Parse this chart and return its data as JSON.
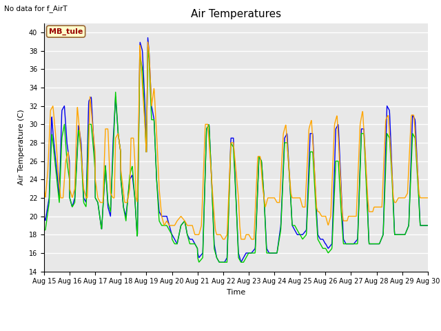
{
  "title": "Air Temperatures",
  "xlabel": "Time",
  "ylabel": "Air Temperature (C)",
  "no_data_text": "No data for f_AirT",
  "station_label": "MB_tule",
  "ylim": [
    14,
    41
  ],
  "yticks": [
    14,
    16,
    18,
    20,
    22,
    24,
    26,
    28,
    30,
    32,
    34,
    36,
    38,
    40
  ],
  "xtick_labels": [
    "Aug 15",
    "Aug 16",
    "Aug 17",
    "Aug 18",
    "Aug 19",
    "Aug 20",
    "Aug 21",
    "Aug 22",
    "Aug 23",
    "Aug 24",
    "Aug 25",
    "Aug 26",
    "Aug 27",
    "Aug 28",
    "Aug 29",
    "Aug 30"
  ],
  "colors": {
    "li75_t": "#0000ee",
    "li77_temp": "#00cc00",
    "Tsonic": "#ffa500",
    "background": "#e8e8e8",
    "station_box_face": "#ffffcc",
    "station_box_edge": "#996633",
    "station_text": "#990000"
  },
  "linewidth": 1.0,
  "title_fontsize": 11,
  "axis_label_fontsize": 8,
  "tick_fontsize": 7,
  "legend_fontsize": 8
}
